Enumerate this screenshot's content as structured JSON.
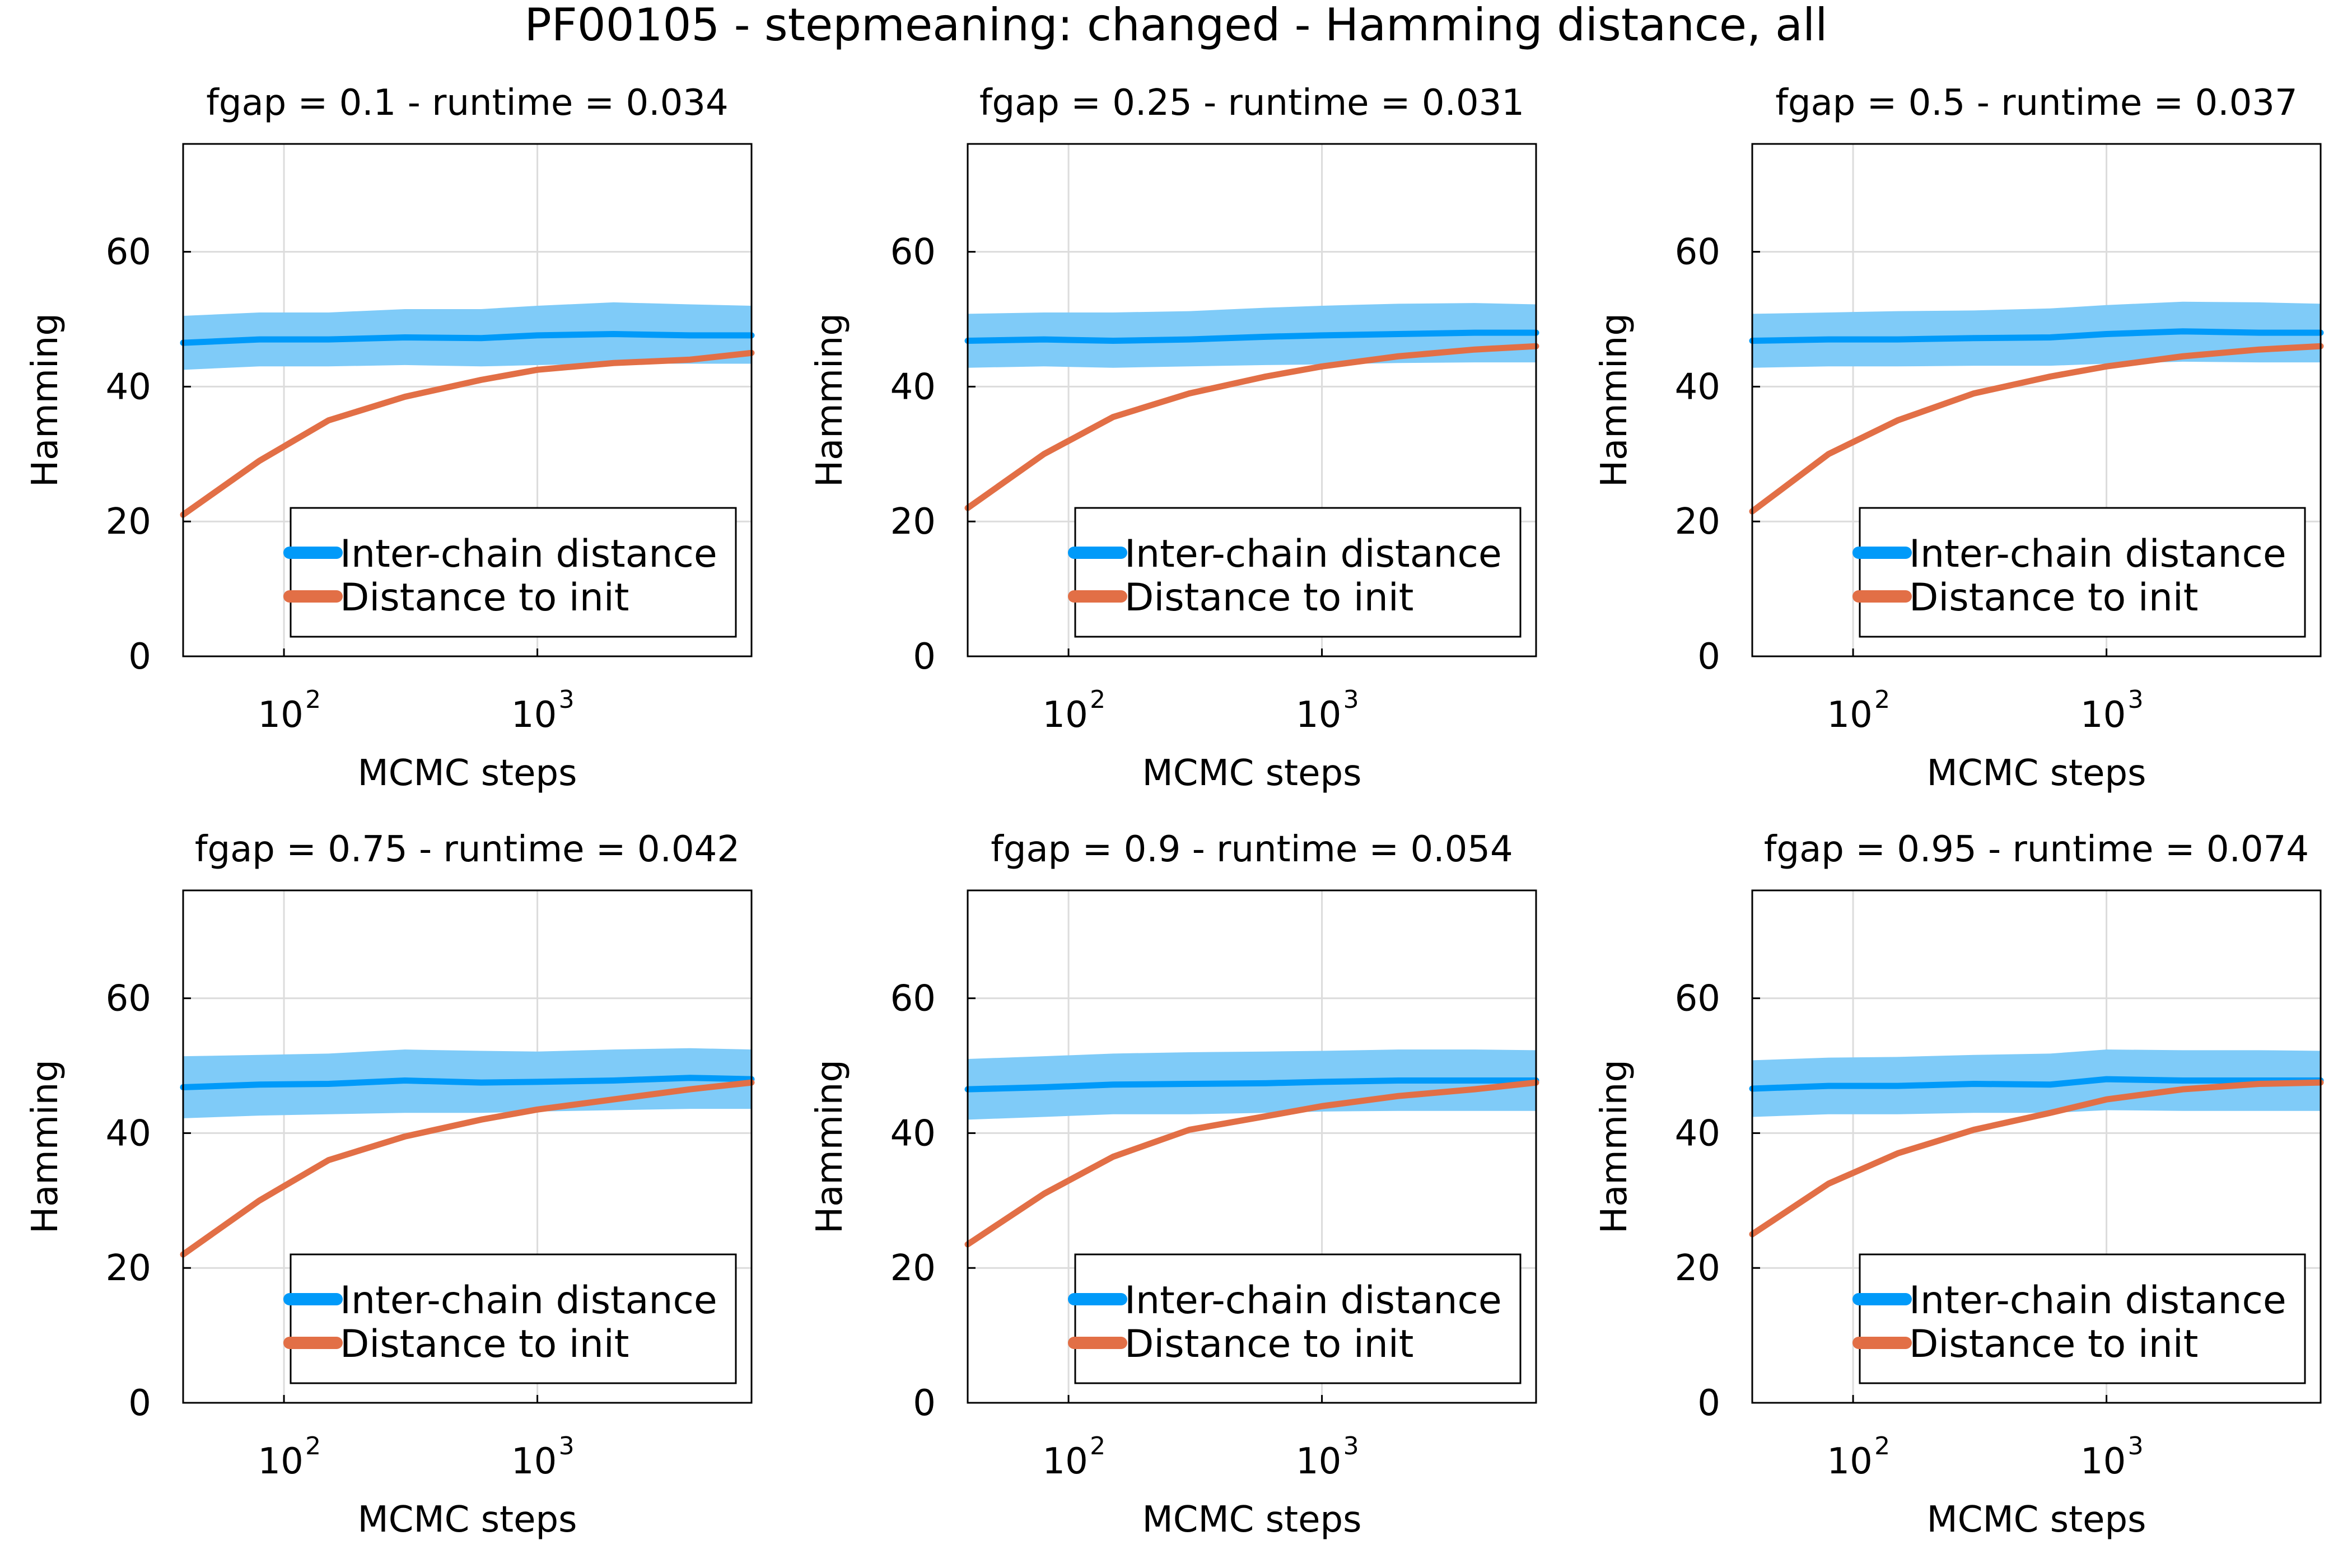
{
  "figure": {
    "title": "PF00105 - stepmeaning: changed - Hamming distance, all"
  },
  "chart_data": [
    {
      "type": "line",
      "title": "fgap = 0.1 - runtime = 0.034",
      "xlabel": "MCMC steps",
      "ylabel": "Hamming",
      "xscale": "log",
      "xlim": [
        40,
        7000
      ],
      "ylim": [
        0,
        76
      ],
      "yticks": [
        0,
        20,
        40,
        60
      ],
      "xticks": [
        {
          "base": "10",
          "exp": "2",
          "value": 100
        },
        {
          "base": "10",
          "exp": "3",
          "value": 1000
        }
      ],
      "grid": true,
      "legend_position": "bottom-right",
      "x": [
        40,
        80,
        150,
        300,
        600,
        1000,
        2000,
        4000,
        7000
      ],
      "series": [
        {
          "name": "Inter-chain distance",
          "color": "#009af9",
          "band_color": "#7fcbf8",
          "values": [
            46.5,
            47,
            47,
            47.3,
            47.2,
            47.6,
            47.8,
            47.6,
            47.6
          ],
          "lower": [
            42.5,
            43,
            43,
            43.2,
            43,
            43.2,
            43.4,
            43.4,
            43.4
          ],
          "upper": [
            50.5,
            51,
            51,
            51.5,
            51.5,
            52,
            52.5,
            52.2,
            52
          ]
        },
        {
          "name": "Distance to init",
          "color": "#e26f46",
          "values": [
            21,
            29,
            35,
            38.5,
            41,
            42.5,
            43.5,
            44,
            45
          ]
        }
      ]
    },
    {
      "type": "line",
      "title": "fgap = 0.25 - runtime = 0.031",
      "xlabel": "MCMC steps",
      "ylabel": "Hamming",
      "xscale": "log",
      "xlim": [
        40,
        7000
      ],
      "ylim": [
        0,
        76
      ],
      "yticks": [
        0,
        20,
        40,
        60
      ],
      "xticks": [
        {
          "base": "10",
          "exp": "2",
          "value": 100
        },
        {
          "base": "10",
          "exp": "3",
          "value": 1000
        }
      ],
      "grid": true,
      "legend_position": "bottom-right",
      "x": [
        40,
        80,
        150,
        300,
        600,
        1000,
        2000,
        4000,
        7000
      ],
      "series": [
        {
          "name": "Inter-chain distance",
          "color": "#009af9",
          "band_color": "#7fcbf8",
          "values": [
            46.8,
            47,
            46.8,
            47,
            47.4,
            47.6,
            47.8,
            48,
            48
          ],
          "lower": [
            42.8,
            43,
            42.8,
            43,
            43.2,
            43.3,
            43.5,
            43.6,
            43.6
          ],
          "upper": [
            50.8,
            51,
            51,
            51.2,
            51.7,
            52,
            52.3,
            52.4,
            52.2
          ]
        },
        {
          "name": "Distance to init",
          "color": "#e26f46",
          "values": [
            22,
            30,
            35.5,
            39,
            41.5,
            43,
            44.5,
            45.5,
            46
          ]
        }
      ]
    },
    {
      "type": "line",
      "title": "fgap = 0.5 - runtime = 0.037",
      "xlabel": "MCMC steps",
      "ylabel": "Hamming",
      "xscale": "log",
      "xlim": [
        40,
        7000
      ],
      "ylim": [
        0,
        76
      ],
      "yticks": [
        0,
        20,
        40,
        60
      ],
      "xticks": [
        {
          "base": "10",
          "exp": "2",
          "value": 100
        },
        {
          "base": "10",
          "exp": "3",
          "value": 1000
        }
      ],
      "grid": true,
      "legend_position": "bottom-right",
      "x": [
        40,
        80,
        150,
        300,
        600,
        1000,
        2000,
        4000,
        7000
      ],
      "series": [
        {
          "name": "Inter-chain distance",
          "color": "#009af9",
          "band_color": "#7fcbf8",
          "values": [
            46.8,
            47,
            47,
            47.2,
            47.3,
            47.8,
            48.2,
            48,
            48
          ],
          "lower": [
            42.8,
            43,
            43,
            43.1,
            43.1,
            43.4,
            43.7,
            43.6,
            43.6
          ],
          "upper": [
            50.8,
            51,
            51.2,
            51.3,
            51.6,
            52.1,
            52.6,
            52.5,
            52.3
          ]
        },
        {
          "name": "Distance to init",
          "color": "#e26f46",
          "values": [
            21.5,
            30,
            35,
            39,
            41.5,
            43,
            44.5,
            45.5,
            46
          ]
        }
      ]
    },
    {
      "type": "line",
      "title": "fgap = 0.75 - runtime = 0.042",
      "xlabel": "MCMC steps",
      "ylabel": "Hamming",
      "xscale": "log",
      "xlim": [
        40,
        7000
      ],
      "ylim": [
        0,
        76
      ],
      "yticks": [
        0,
        20,
        40,
        60
      ],
      "xticks": [
        {
          "base": "10",
          "exp": "2",
          "value": 100
        },
        {
          "base": "10",
          "exp": "3",
          "value": 1000
        }
      ],
      "grid": true,
      "legend_position": "bottom-right",
      "x": [
        40,
        80,
        150,
        300,
        600,
        1000,
        2000,
        4000,
        7000
      ],
      "series": [
        {
          "name": "Inter-chain distance",
          "color": "#009af9",
          "band_color": "#7fcbf8",
          "values": [
            46.8,
            47.2,
            47.3,
            47.8,
            47.5,
            47.6,
            47.8,
            48.2,
            48
          ],
          "lower": [
            42.2,
            42.6,
            42.8,
            43,
            43,
            43.2,
            43.4,
            43.6,
            43.6
          ],
          "upper": [
            51.4,
            51.6,
            51.8,
            52.4,
            52.2,
            52.1,
            52.4,
            52.6,
            52.4
          ]
        },
        {
          "name": "Distance to init",
          "color": "#e26f46",
          "values": [
            22,
            30,
            36,
            39.5,
            42,
            43.5,
            45,
            46.5,
            47.5
          ]
        }
      ]
    },
    {
      "type": "line",
      "title": "fgap = 0.9 - runtime = 0.054",
      "xlabel": "MCMC steps",
      "ylabel": "Hamming",
      "xscale": "log",
      "xlim": [
        40,
        7000
      ],
      "ylim": [
        0,
        76
      ],
      "yticks": [
        0,
        20,
        40,
        60
      ],
      "xticks": [
        {
          "base": "10",
          "exp": "2",
          "value": 100
        },
        {
          "base": "10",
          "exp": "3",
          "value": 1000
        }
      ],
      "grid": true,
      "legend_position": "bottom-right",
      "x": [
        40,
        80,
        150,
        300,
        600,
        1000,
        2000,
        4000,
        7000
      ],
      "series": [
        {
          "name": "Inter-chain distance",
          "color": "#009af9",
          "band_color": "#7fcbf8",
          "values": [
            46.5,
            46.8,
            47.2,
            47.3,
            47.4,
            47.6,
            47.8,
            47.8,
            47.8
          ],
          "lower": [
            42,
            42.4,
            42.8,
            42.8,
            43,
            43.2,
            43.3,
            43.3,
            43.3
          ],
          "upper": [
            51,
            51.4,
            51.8,
            52,
            52.1,
            52.2,
            52.4,
            52.4,
            52.3
          ]
        },
        {
          "name": "Distance to init",
          "color": "#e26f46",
          "values": [
            23.5,
            31,
            36.5,
            40.5,
            42.5,
            44,
            45.5,
            46.5,
            47.5
          ]
        }
      ]
    },
    {
      "type": "line",
      "title": "fgap = 0.95 - runtime = 0.074",
      "xlabel": "MCMC steps",
      "ylabel": "Hamming",
      "xscale": "log",
      "xlim": [
        40,
        7000
      ],
      "ylim": [
        0,
        76
      ],
      "yticks": [
        0,
        20,
        40,
        60
      ],
      "xticks": [
        {
          "base": "10",
          "exp": "2",
          "value": 100
        },
        {
          "base": "10",
          "exp": "3",
          "value": 1000
        }
      ],
      "grid": true,
      "legend_position": "bottom-right",
      "x": [
        40,
        80,
        150,
        300,
        600,
        1000,
        2000,
        4000,
        7000
      ],
      "series": [
        {
          "name": "Inter-chain distance",
          "color": "#009af9",
          "band_color": "#7fcbf8",
          "values": [
            46.6,
            47,
            47,
            47.3,
            47.2,
            48,
            47.8,
            47.8,
            47.8
          ],
          "lower": [
            42.4,
            42.8,
            42.8,
            43,
            43,
            43.4,
            43.3,
            43.3,
            43.3
          ],
          "upper": [
            50.8,
            51.2,
            51.3,
            51.6,
            51.8,
            52.4,
            52.3,
            52.3,
            52.2
          ]
        },
        {
          "name": "Distance to init",
          "color": "#e26f46",
          "values": [
            25,
            32.5,
            37,
            40.5,
            43,
            45,
            46.5,
            47.3,
            47.5
          ]
        }
      ]
    }
  ]
}
